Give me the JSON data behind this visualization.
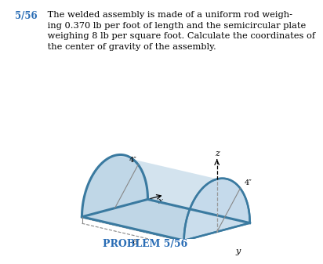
{
  "title_number": "5/56",
  "title_text": " The welded assembly is made of a uniform rod weigh-\n ing 0.370 lb per foot of length and the semicircular plate\n weighing 8 lb per square foot. Calculate the coordinates of\n the center of gravity of the assembly.",
  "problem_label": "PROBLEM 5/56",
  "label_4_front": "4″",
  "label_4_back": "4″",
  "label_6": "6″",
  "axis_x": "x",
  "axis_y": "y",
  "axis_z": "z",
  "bg_color": "#ffffff",
  "text_color": "#000000",
  "title_number_color": "#2a6db5",
  "problem_label_color": "#2a6db5",
  "shape_fill": "#c2d8ea",
  "shape_fill_dark": "#a8c8de",
  "shape_edge": "#5b9cbf",
  "shape_edge_dark": "#3a7aa0",
  "rod_lw": 2.2,
  "plate_edge_lw": 1.8,
  "dim_line_color": "#888888",
  "dim_line_lw": 0.8,
  "axis_color": "#333333",
  "dashed_color": "#999999"
}
